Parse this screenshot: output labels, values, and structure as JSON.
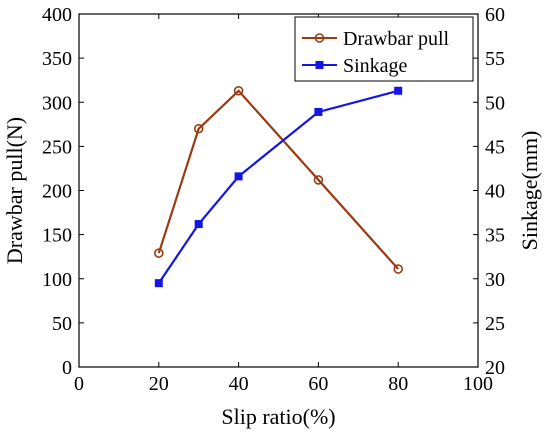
{
  "chart_data": {
    "type": "line",
    "xlabel": "Slip ratio(%)",
    "ylabel_left": "Drawbar pull(N)",
    "ylabel_right": "Sinkage(mm)",
    "xlim": [
      0,
      100
    ],
    "ylim_left": [
      0,
      400
    ],
    "ylim_right": [
      20,
      60
    ],
    "x_ticks": [
      0,
      20,
      40,
      60,
      80,
      100
    ],
    "y_left_ticks": [
      0,
      50,
      100,
      150,
      200,
      250,
      300,
      350,
      400
    ],
    "y_right_ticks": [
      20,
      25,
      30,
      35,
      40,
      45,
      50,
      55,
      60
    ],
    "grid": false,
    "legend_position": "top-right",
    "series": [
      {
        "name": "Drawbar pull",
        "axis": "left",
        "color": "#9b3a12",
        "marker": "circle",
        "x": [
          20,
          30,
          40,
          60,
          80
        ],
        "y": [
          129,
          270,
          313,
          212,
          111
        ]
      },
      {
        "name": "Sinkage",
        "axis": "right",
        "color": "#1414e6",
        "marker": "square",
        "x": [
          20,
          30,
          40,
          60,
          80
        ],
        "y": [
          29.5,
          36.2,
          41.6,
          48.9,
          51.3
        ]
      }
    ]
  }
}
